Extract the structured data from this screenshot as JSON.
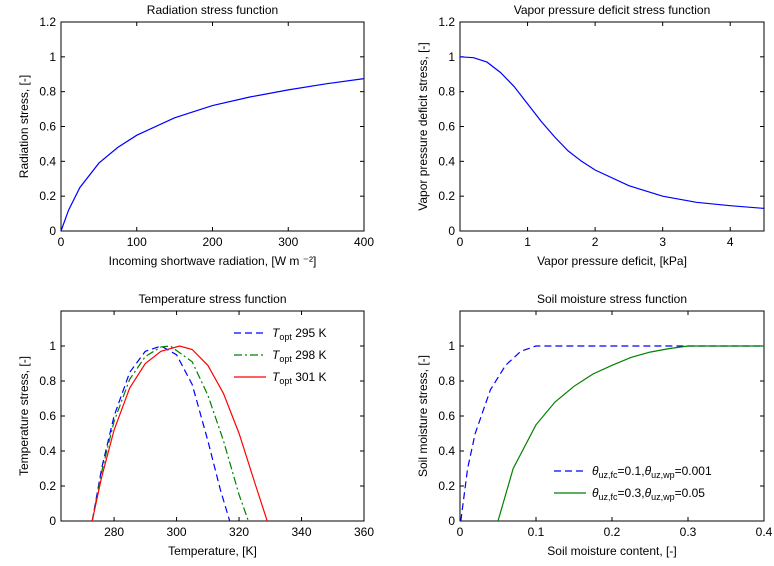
{
  "chart_data": [
    {
      "type": "line",
      "title": "Radiation stress function",
      "xlabel": "Incoming shortwave radiation, [W m ⁻²]",
      "ylabel": "Radiation stress, [-]",
      "xlim": [
        0,
        400
      ],
      "ylim": [
        0,
        1.2
      ],
      "xticks": [
        "0",
        "100",
        "200",
        "300",
        "400"
      ],
      "yticks": [
        "0",
        "0.2",
        "0.4",
        "0.6",
        "0.8",
        "1",
        "1.2"
      ],
      "grid": false,
      "legend": null,
      "series": [
        {
          "color": "#0000ff",
          "style": "solid",
          "x": [
            0,
            10,
            25,
            50,
            75,
            100,
            150,
            200,
            250,
            300,
            350,
            400
          ],
          "y": [
            0,
            0.12,
            0.25,
            0.39,
            0.48,
            0.55,
            0.65,
            0.72,
            0.77,
            0.81,
            0.845,
            0.875
          ]
        }
      ]
    },
    {
      "type": "line",
      "title": "Vapor pressure deficit stress function",
      "xlabel": "Vapor pressure deficit, [kPa]",
      "ylabel": "Vapor pressure deficit stress, [-]",
      "xlim": [
        0,
        4.5
      ],
      "ylim": [
        0,
        1.2
      ],
      "xticks": [
        "0",
        "1",
        "2",
        "3",
        "4"
      ],
      "yticks": [
        "0",
        "0.2",
        "0.4",
        "0.6",
        "0.8",
        "1",
        "1.2"
      ],
      "grid": false,
      "legend": null,
      "series": [
        {
          "color": "#0000ff",
          "style": "solid",
          "x": [
            0,
            0.2,
            0.4,
            0.6,
            0.8,
            1.0,
            1.2,
            1.4,
            1.6,
            1.8,
            2.0,
            2.5,
            3.0,
            3.5,
            4.0,
            4.5
          ],
          "y": [
            1.0,
            0.995,
            0.97,
            0.91,
            0.83,
            0.73,
            0.63,
            0.54,
            0.46,
            0.4,
            0.35,
            0.26,
            0.2,
            0.165,
            0.145,
            0.13
          ]
        }
      ]
    },
    {
      "type": "line",
      "title": "Temperature stress function",
      "xlabel": "Temperature, [K]",
      "ylabel": "Temperature stress, [-]",
      "xlim": [
        263,
        360
      ],
      "ylim": [
        0,
        1.2
      ],
      "xticks": [
        "280",
        "300",
        "320",
        "340",
        "360"
      ],
      "xtick_values": [
        280,
        300,
        320,
        340,
        360
      ],
      "yticks": [
        "0",
        "0.2",
        "0.4",
        "0.6",
        "0.8",
        "1"
      ],
      "ytick_values": [
        0,
        0.2,
        0.4,
        0.6,
        0.8,
        1
      ],
      "grid": false,
      "legend": "top-right",
      "series": [
        {
          "legend_symbol": "T",
          "legend_subscript": "opt",
          "legend_suffix": " 295 K",
          "color": "#0000ff",
          "style": "dashed",
          "x": [
            273,
            276,
            280,
            285,
            290,
            295,
            300,
            305,
            310,
            314,
            317
          ],
          "y": [
            0,
            0.3,
            0.6,
            0.85,
            0.97,
            1.0,
            0.95,
            0.78,
            0.46,
            0.18,
            0
          ]
        },
        {
          "legend_symbol": "T",
          "legend_subscript": "opt",
          "legend_suffix": " 298 K",
          "color": "#008000",
          "style": "dashdot",
          "x": [
            273,
            276,
            280,
            285,
            290,
            295,
            298,
            305,
            310,
            315,
            320,
            323
          ],
          "y": [
            0,
            0.28,
            0.57,
            0.81,
            0.94,
            0.995,
            1.0,
            0.91,
            0.72,
            0.46,
            0.15,
            0
          ]
        },
        {
          "legend_symbol": "T",
          "legend_subscript": "opt",
          "legend_suffix": " 301 K",
          "color": "#ff0000",
          "style": "solid",
          "x": [
            273,
            276,
            280,
            285,
            290,
            295,
            301,
            305,
            310,
            315,
            320,
            325,
            329
          ],
          "y": [
            0,
            0.25,
            0.52,
            0.76,
            0.9,
            0.97,
            1.0,
            0.98,
            0.89,
            0.73,
            0.5,
            0.22,
            0
          ]
        }
      ]
    },
    {
      "type": "line",
      "title": "Soil moisture stress function",
      "xlabel": "Soil moisture content, [-]",
      "ylabel": "Soil moisture stress, [-]",
      "xlim": [
        0,
        0.4
      ],
      "ylim": [
        0,
        1.2
      ],
      "xticks": [
        "0",
        "0.1",
        "0.2",
        "0.3",
        "0.4"
      ],
      "xtick_values": [
        0,
        0.1,
        0.2,
        0.3,
        0.4
      ],
      "yticks": [
        "0",
        "0.2",
        "0.4",
        "0.6",
        "0.8",
        "1"
      ],
      "ytick_values": [
        0,
        0.2,
        0.4,
        0.6,
        0.8,
        1
      ],
      "grid": false,
      "legend": "bottom-right",
      "series": [
        {
          "legend_symbol": "θ",
          "legend_subscript": "uz,fc",
          "legend_suffix": "=0.1,",
          "legend_symbol2": "θ",
          "legend_subscript2": "uz,wp",
          "legend_suffix2": "=0.001",
          "color": "#0000ff",
          "style": "dashed",
          "x": [
            0.001,
            0.01,
            0.02,
            0.04,
            0.06,
            0.08,
            0.1,
            0.2,
            0.3,
            0.4
          ],
          "y": [
            0,
            0.3,
            0.5,
            0.75,
            0.89,
            0.97,
            1.0,
            1.0,
            1.0,
            1.0
          ]
        },
        {
          "legend_symbol": "θ",
          "legend_subscript": "uz,fc",
          "legend_suffix": "=0.3,",
          "legend_symbol2": "θ",
          "legend_subscript2": "uz,wp",
          "legend_suffix2": "=0.05",
          "color": "#008000",
          "style": "solid",
          "x": [
            0.05,
            0.07,
            0.1,
            0.125,
            0.15,
            0.175,
            0.2,
            0.225,
            0.25,
            0.275,
            0.3,
            0.4
          ],
          "y": [
            0,
            0.3,
            0.55,
            0.68,
            0.77,
            0.84,
            0.89,
            0.935,
            0.965,
            0.985,
            1.0,
            1.0
          ]
        }
      ]
    }
  ]
}
